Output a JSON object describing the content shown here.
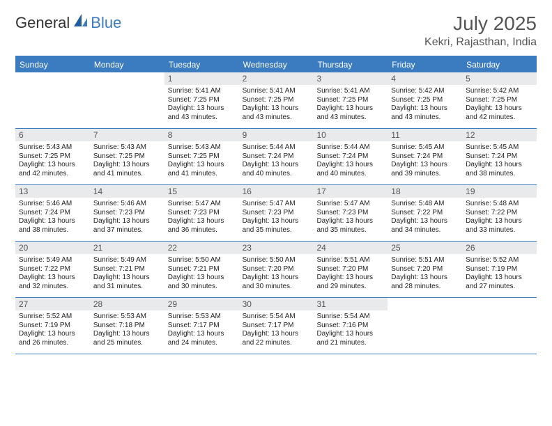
{
  "logo": {
    "text1": "General",
    "text2": "Blue"
  },
  "title": {
    "month": "July 2025",
    "location": "Kekri, Rajasthan, India"
  },
  "colors": {
    "accent": "#3b7bbf",
    "dayhead": "#e9eaeb",
    "text": "#222222",
    "muted": "#555555",
    "bg": "#ffffff"
  },
  "weekdays": [
    "Sunday",
    "Monday",
    "Tuesday",
    "Wednesday",
    "Thursday",
    "Friday",
    "Saturday"
  ],
  "weeks": [
    [
      {
        "n": "",
        "lines": []
      },
      {
        "n": "",
        "lines": []
      },
      {
        "n": "1",
        "lines": [
          "Sunrise: 5:41 AM",
          "Sunset: 7:25 PM",
          "Daylight: 13 hours",
          "and 43 minutes."
        ]
      },
      {
        "n": "2",
        "lines": [
          "Sunrise: 5:41 AM",
          "Sunset: 7:25 PM",
          "Daylight: 13 hours",
          "and 43 minutes."
        ]
      },
      {
        "n": "3",
        "lines": [
          "Sunrise: 5:41 AM",
          "Sunset: 7:25 PM",
          "Daylight: 13 hours",
          "and 43 minutes."
        ]
      },
      {
        "n": "4",
        "lines": [
          "Sunrise: 5:42 AM",
          "Sunset: 7:25 PM",
          "Daylight: 13 hours",
          "and 43 minutes."
        ]
      },
      {
        "n": "5",
        "lines": [
          "Sunrise: 5:42 AM",
          "Sunset: 7:25 PM",
          "Daylight: 13 hours",
          "and 42 minutes."
        ]
      }
    ],
    [
      {
        "n": "6",
        "lines": [
          "Sunrise: 5:43 AM",
          "Sunset: 7:25 PM",
          "Daylight: 13 hours",
          "and 42 minutes."
        ]
      },
      {
        "n": "7",
        "lines": [
          "Sunrise: 5:43 AM",
          "Sunset: 7:25 PM",
          "Daylight: 13 hours",
          "and 41 minutes."
        ]
      },
      {
        "n": "8",
        "lines": [
          "Sunrise: 5:43 AM",
          "Sunset: 7:25 PM",
          "Daylight: 13 hours",
          "and 41 minutes."
        ]
      },
      {
        "n": "9",
        "lines": [
          "Sunrise: 5:44 AM",
          "Sunset: 7:24 PM",
          "Daylight: 13 hours",
          "and 40 minutes."
        ]
      },
      {
        "n": "10",
        "lines": [
          "Sunrise: 5:44 AM",
          "Sunset: 7:24 PM",
          "Daylight: 13 hours",
          "and 40 minutes."
        ]
      },
      {
        "n": "11",
        "lines": [
          "Sunrise: 5:45 AM",
          "Sunset: 7:24 PM",
          "Daylight: 13 hours",
          "and 39 minutes."
        ]
      },
      {
        "n": "12",
        "lines": [
          "Sunrise: 5:45 AM",
          "Sunset: 7:24 PM",
          "Daylight: 13 hours",
          "and 38 minutes."
        ]
      }
    ],
    [
      {
        "n": "13",
        "lines": [
          "Sunrise: 5:46 AM",
          "Sunset: 7:24 PM",
          "Daylight: 13 hours",
          "and 38 minutes."
        ]
      },
      {
        "n": "14",
        "lines": [
          "Sunrise: 5:46 AM",
          "Sunset: 7:23 PM",
          "Daylight: 13 hours",
          "and 37 minutes."
        ]
      },
      {
        "n": "15",
        "lines": [
          "Sunrise: 5:47 AM",
          "Sunset: 7:23 PM",
          "Daylight: 13 hours",
          "and 36 minutes."
        ]
      },
      {
        "n": "16",
        "lines": [
          "Sunrise: 5:47 AM",
          "Sunset: 7:23 PM",
          "Daylight: 13 hours",
          "and 35 minutes."
        ]
      },
      {
        "n": "17",
        "lines": [
          "Sunrise: 5:47 AM",
          "Sunset: 7:23 PM",
          "Daylight: 13 hours",
          "and 35 minutes."
        ]
      },
      {
        "n": "18",
        "lines": [
          "Sunrise: 5:48 AM",
          "Sunset: 7:22 PM",
          "Daylight: 13 hours",
          "and 34 minutes."
        ]
      },
      {
        "n": "19",
        "lines": [
          "Sunrise: 5:48 AM",
          "Sunset: 7:22 PM",
          "Daylight: 13 hours",
          "and 33 minutes."
        ]
      }
    ],
    [
      {
        "n": "20",
        "lines": [
          "Sunrise: 5:49 AM",
          "Sunset: 7:22 PM",
          "Daylight: 13 hours",
          "and 32 minutes."
        ]
      },
      {
        "n": "21",
        "lines": [
          "Sunrise: 5:49 AM",
          "Sunset: 7:21 PM",
          "Daylight: 13 hours",
          "and 31 minutes."
        ]
      },
      {
        "n": "22",
        "lines": [
          "Sunrise: 5:50 AM",
          "Sunset: 7:21 PM",
          "Daylight: 13 hours",
          "and 30 minutes."
        ]
      },
      {
        "n": "23",
        "lines": [
          "Sunrise: 5:50 AM",
          "Sunset: 7:20 PM",
          "Daylight: 13 hours",
          "and 30 minutes."
        ]
      },
      {
        "n": "24",
        "lines": [
          "Sunrise: 5:51 AM",
          "Sunset: 7:20 PM",
          "Daylight: 13 hours",
          "and 29 minutes."
        ]
      },
      {
        "n": "25",
        "lines": [
          "Sunrise: 5:51 AM",
          "Sunset: 7:20 PM",
          "Daylight: 13 hours",
          "and 28 minutes."
        ]
      },
      {
        "n": "26",
        "lines": [
          "Sunrise: 5:52 AM",
          "Sunset: 7:19 PM",
          "Daylight: 13 hours",
          "and 27 minutes."
        ]
      }
    ],
    [
      {
        "n": "27",
        "lines": [
          "Sunrise: 5:52 AM",
          "Sunset: 7:19 PM",
          "Daylight: 13 hours",
          "and 26 minutes."
        ]
      },
      {
        "n": "28",
        "lines": [
          "Sunrise: 5:53 AM",
          "Sunset: 7:18 PM",
          "Daylight: 13 hours",
          "and 25 minutes."
        ]
      },
      {
        "n": "29",
        "lines": [
          "Sunrise: 5:53 AM",
          "Sunset: 7:17 PM",
          "Daylight: 13 hours",
          "and 24 minutes."
        ]
      },
      {
        "n": "30",
        "lines": [
          "Sunrise: 5:54 AM",
          "Sunset: 7:17 PM",
          "Daylight: 13 hours",
          "and 22 minutes."
        ]
      },
      {
        "n": "31",
        "lines": [
          "Sunrise: 5:54 AM",
          "Sunset: 7:16 PM",
          "Daylight: 13 hours",
          "and 21 minutes."
        ]
      },
      {
        "n": "",
        "lines": []
      },
      {
        "n": "",
        "lines": []
      }
    ]
  ]
}
